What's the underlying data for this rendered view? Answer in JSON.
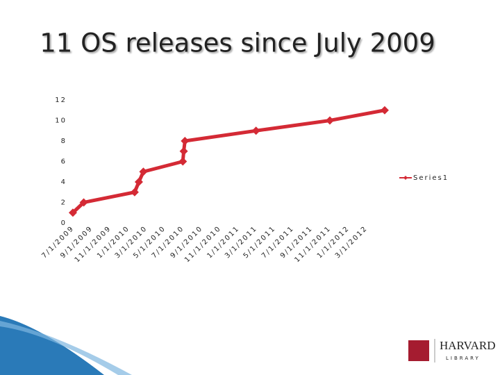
{
  "chart_data": {
    "type": "line",
    "title": "11 OS releases since July 2009",
    "x": [
      "7/1/2009",
      "8/6/2009",
      "1/22/2010",
      "2/5/2010",
      "2/20/2010",
      "7/1/2010",
      "7/4/2010",
      "7/8/2010",
      "3/1/2011",
      "11/1/2011",
      "5/1/2012"
    ],
    "series": [
      {
        "name": "Series1",
        "color": "#d42a35",
        "values": [
          1,
          2,
          3,
          4,
          5,
          6,
          7,
          8,
          9,
          10,
          11
        ]
      }
    ],
    "xlim": [
      "6/15/2009",
      "5/15/2012"
    ],
    "xticks": [
      "7/1/2009",
      "9/1/2009",
      "11/1/2009",
      "1/1/2010",
      "3/1/2010",
      "5/1/2010",
      "7/1/2010",
      "9/1/2010",
      "11/1/2010",
      "1/1/2011",
      "3/1/2011",
      "5/1/2011",
      "7/1/2011",
      "9/1/2011",
      "11/1/2011",
      "1/1/2012",
      "3/1/2012"
    ],
    "ylim": [
      0,
      12
    ],
    "yticks": [
      0,
      2,
      4,
      6,
      8,
      10,
      12
    ],
    "grid": false,
    "legend": "right"
  },
  "logo": {
    "name": "HARVARD",
    "subtitle": "LIBRARY"
  }
}
